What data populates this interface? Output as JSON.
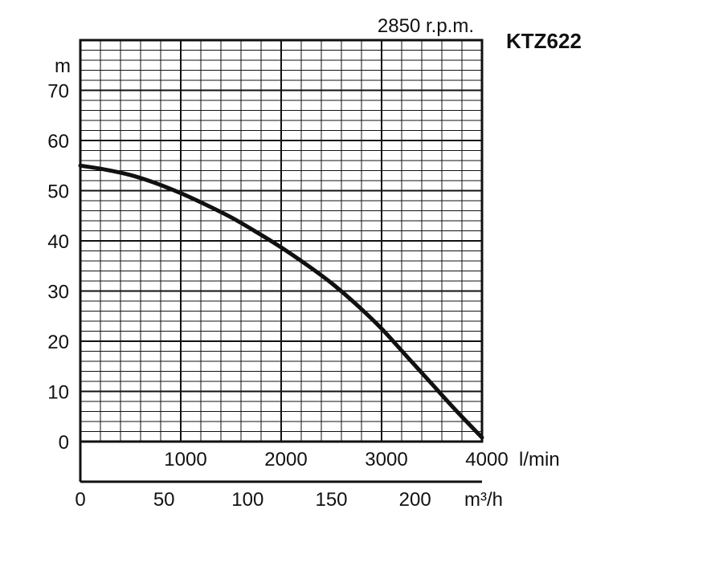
{
  "chart_data": {
    "type": "line",
    "title": "KTZ622",
    "subtitle": "2850 r.p.m.",
    "ylabel": "m",
    "ylim": [
      0,
      80
    ],
    "xlim": [
      0,
      4000
    ],
    "x_unit": "l/min",
    "x2_unit": "m³/h",
    "grid": true,
    "y_ticks": [
      "0",
      "10",
      "20",
      "30",
      "40",
      "50",
      "60",
      "70"
    ],
    "x_ticks": [
      "1000",
      "2000",
      "3000",
      "4000"
    ],
    "x2_ticks": [
      "0",
      "50",
      "100",
      "150",
      "200"
    ],
    "series": [
      {
        "x": [
          0,
          250,
          500,
          750,
          1000,
          1250,
          1500,
          1750,
          2000,
          2250,
          2500,
          2750,
          3000,
          3250,
          3500,
          3750,
          4000
        ],
        "values": [
          55,
          54.2,
          53.1,
          51.5,
          49.5,
          47.2,
          44.7,
          41.8,
          38.7,
          35.3,
          31.6,
          27.3,
          22.5,
          17.0,
          11.5,
          6.0,
          0.8
        ]
      }
    ]
  },
  "colors": {
    "line": "#111111",
    "grid": "#111111"
  }
}
